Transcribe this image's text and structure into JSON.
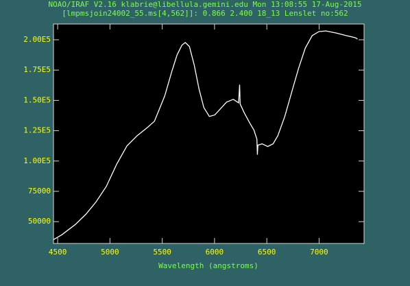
{
  "chart_data": {
    "type": "line",
    "title": "NOAO/IRAF V2.16 klabrie@libellula.gemini.edu Mon 13:08:55 17-Aug-2015",
    "subtitle": "[lmpmsjoin24002_55.ms[4,562]]: 0.866   2.400 18_13 Lenslet no:562",
    "x_label": "Wavelength (angstroms)",
    "xlim": [
      4460,
      7430
    ],
    "ylim": [
      32000,
      213000
    ],
    "xticks": [
      4500,
      5000,
      5500,
      6000,
      6500,
      7000
    ],
    "yticks": [
      {
        "value": 50000,
        "label": "50000"
      },
      {
        "value": 75000,
        "label": "75000"
      },
      {
        "value": 100000,
        "label": "1.00E5"
      },
      {
        "value": 125000,
        "label": "1.25E5"
      },
      {
        "value": 150000,
        "label": "1.50E5"
      },
      {
        "value": 175000,
        "label": "1.75E5"
      },
      {
        "value": 200000,
        "label": "2.00E5"
      }
    ],
    "x": [
      4461,
      4540,
      4670,
      4770,
      4867,
      4966,
      5064,
      5163,
      5261,
      5360,
      5425,
      5471,
      5524,
      5590,
      5642,
      5688,
      5720,
      5760,
      5806,
      5852,
      5898,
      5950,
      6003,
      6049,
      6115,
      6180,
      6230,
      6240,
      6245,
      6285,
      6338,
      6377,
      6405,
      6410,
      6415,
      6455,
      6508,
      6560,
      6606,
      6672,
      6737,
      6803,
      6868,
      6934,
      6999,
      7065,
      7163,
      7262,
      7347,
      7367
    ],
    "series": [
      {
        "color": "#ffffff",
        "values": [
          35200,
          39200,
          47700,
          56100,
          66300,
          79200,
          97300,
          112500,
          121000,
          127800,
          132800,
          142400,
          153700,
          173500,
          187600,
          195500,
          197700,
          194400,
          179100,
          159400,
          144100,
          136800,
          138000,
          142400,
          148600,
          150900,
          148000,
          163000,
          147000,
          139600,
          131200,
          125500,
          118000,
          105200,
          113100,
          114200,
          112000,
          114200,
          121000,
          136800,
          156500,
          176300,
          193200,
          203400,
          206800,
          207300,
          205600,
          203400,
          201700,
          200600
        ]
      }
    ]
  }
}
